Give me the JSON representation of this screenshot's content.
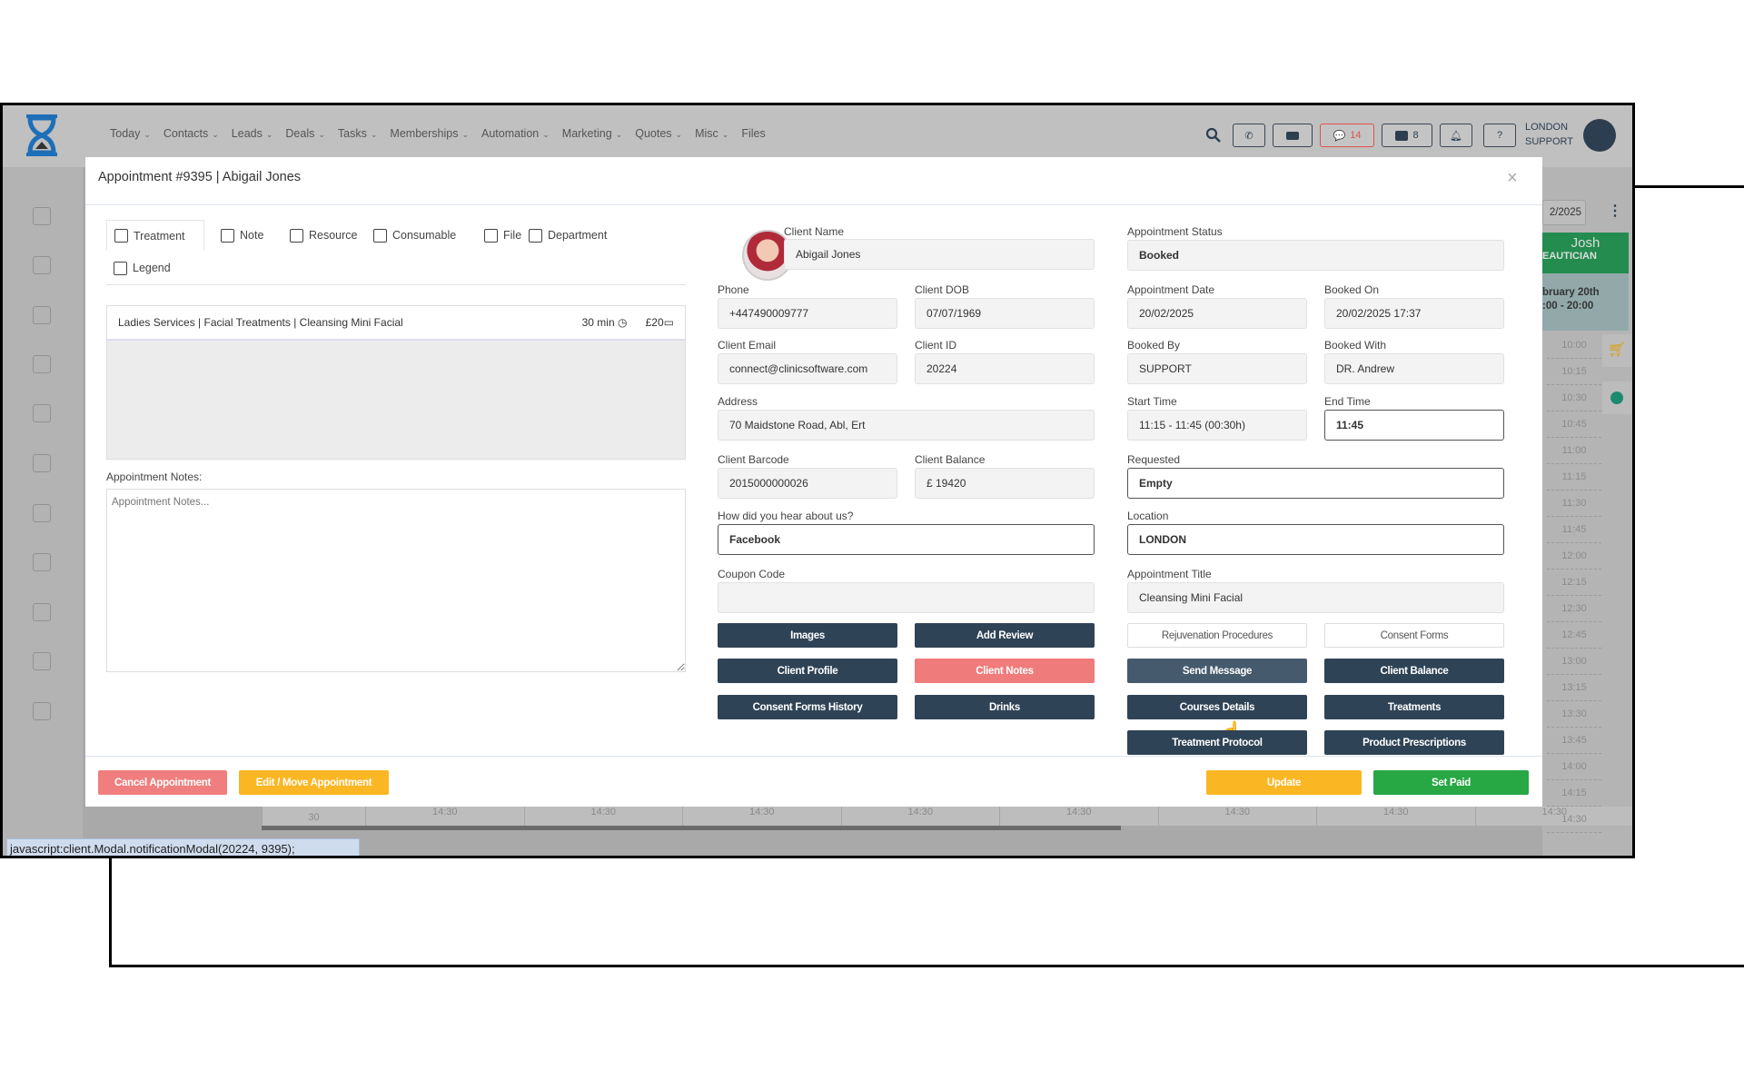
{
  "nav": {
    "items": [
      "Today",
      "Contacts",
      "Leads",
      "Deals",
      "Tasks",
      "Memberships",
      "Automation",
      "Marketing",
      "Quotes",
      "Misc",
      "Files"
    ],
    "chat_count": "14",
    "store_count": "8",
    "user_line1": "LONDON",
    "user_line2": "SUPPORT",
    "icons": [
      "search-icon",
      "phone-icon",
      "inbox-icon",
      "chat-icon",
      "store-icon",
      "bell-icon",
      "help-icon",
      "avatar-icon"
    ],
    "accent": "#e0524f"
  },
  "sidebar": {
    "icons": [
      "calendar-icon",
      "box-icon",
      "copy-icon",
      "calendar-check-icon",
      "history-icon",
      "gift-icon",
      "cart-icon",
      "handshake-icon",
      "chart-icon",
      "user-circle-icon",
      "lock-icon"
    ]
  },
  "calendar": {
    "date": "2/2025",
    "staff_name": "Josh",
    "staff_role": "EAUTICIAN",
    "day_line1": "bruary 20th",
    "day_line2": ":00 - 20:00",
    "times": [
      "10:00",
      "10:15",
      "10:30",
      "10:45",
      "11:00",
      "11:15",
      "11:30",
      "11:45",
      "12:00",
      "12:15",
      "12:30",
      "12:45",
      "13:00",
      "13:15",
      "13:30",
      "13:45",
      "14:00",
      "14:15",
      "14:30"
    ],
    "bottom_times": [
      "30",
      "14:30",
      "14:30",
      "14:30",
      "14:30",
      "14:30",
      "14:30",
      "14:30",
      "14:30"
    ]
  },
  "modal": {
    "title": "Appointment #9395 | Abigail Jones",
    "close": "×",
    "tabs": [
      "Treatment",
      "Note",
      "Resource",
      "Consumable",
      "File",
      "Department",
      "Legend"
    ],
    "service": {
      "name": "Ladies Services | Facial Treatments | Cleansing Mini Facial",
      "duration": "30 min",
      "price": "£20"
    },
    "notes_label": "Appointment Notes:",
    "notes_placeholder": "Appointment Notes...",
    "client": {
      "name_label": "Client Name",
      "name": "Abigail Jones",
      "phone_label": "Phone",
      "phone": "+447490009777",
      "dob_label": "Client DOB",
      "dob": "07/07/1969",
      "email_label": "Client Email",
      "email": "connect@clinicsoftware.com",
      "id_label": "Client ID",
      "id": "20224",
      "address_label": "Address",
      "address": "70  Maidstone Road, Abl, Ert",
      "barcode_label": "Client Barcode",
      "barcode": "2015000000026",
      "balance_label": "Client Balance",
      "balance": "£ 19420",
      "hear_label": "How did you hear about us?",
      "hear": "Facebook",
      "coupon_label": "Coupon Code",
      "coupon": ""
    },
    "appt": {
      "status_label": "Appointment Status",
      "status": "Booked",
      "date_label": "Appointment Date",
      "date": "20/02/2025",
      "booked_on_label": "Booked On",
      "booked_on": "20/02/2025 17:37",
      "booked_by_label": "Booked By",
      "booked_by": "SUPPORT",
      "booked_with_label": "Booked With",
      "booked_with": "DR. Andrew",
      "start_label": "Start Time",
      "start": "11:15 - 11:45 (00:30h)",
      "end_label": "End Time",
      "end": "11:45",
      "requested_label": "Requested",
      "requested": "Empty",
      "location_label": "Location",
      "location": "LONDON",
      "title_label": "Appointment Title",
      "title": "Cleansing Mini Facial"
    },
    "buttons": {
      "images": "Images",
      "add_review": "Add Review",
      "client_profile": "Client Profile",
      "client_notes": "Client Notes",
      "consent_history": "Consent Forms History",
      "drinks": "Drinks",
      "rejuvenation": "Rejuvenation Procedures",
      "consent_forms": "Consent Forms",
      "send_message": "Send Message",
      "client_balance": "Client Balance",
      "courses": "Courses Details",
      "treatments": "Treatments",
      "protocol": "Treatment Protocol",
      "prescriptions": "Product Prescriptions"
    },
    "footer": {
      "cancel": "Cancel Appointment",
      "edit": "Edit / Move Appointment",
      "update": "Update",
      "set_paid": "Set Paid"
    }
  },
  "status_bar": "javascript:client.Modal.notificationModal(20224, 9395);"
}
